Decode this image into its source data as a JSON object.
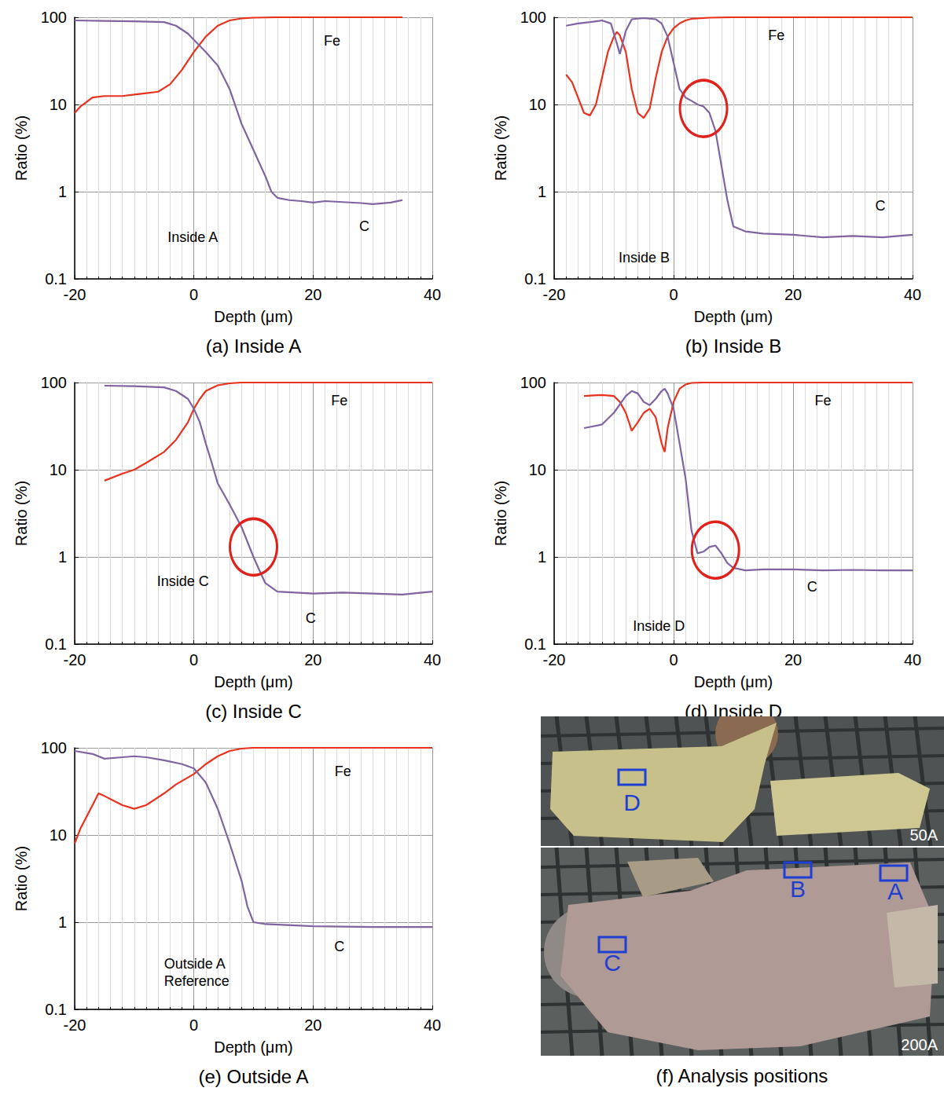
{
  "chart_data": [
    {
      "type": "line",
      "title": "(a) Inside A",
      "inset_label": "Inside A",
      "xlabel": "Depth (μm)",
      "ylabel": "Ratio (%)",
      "log": "y",
      "grid": true,
      "xlim": [
        -20,
        40
      ],
      "ylim": [
        0.1,
        100
      ],
      "xticks": [
        -20,
        0,
        20,
        40
      ],
      "yticks": [
        0.1,
        1,
        10,
        100
      ],
      "series": [
        {
          "name": "Fe",
          "color": "#e8321e",
          "x": [
            -20,
            -19,
            -17,
            -15,
            -12,
            -10,
            -8,
            -6,
            -4,
            -2,
            0,
            2,
            4,
            6,
            8,
            10,
            12,
            14,
            20,
            25,
            30,
            35
          ],
          "values": [
            8,
            9.5,
            12,
            12.5,
            12.5,
            13,
            13.5,
            14,
            17,
            25,
            40,
            60,
            80,
            92,
            97,
            99,
            99.5,
            100,
            100,
            100,
            100,
            100
          ]
        },
        {
          "name": "C",
          "color": "#8064a2",
          "x": [
            -20,
            -15,
            -10,
            -5,
            -3,
            -1,
            0,
            2,
            4,
            6,
            8,
            10,
            12,
            13,
            14,
            16,
            18,
            20,
            22,
            25,
            28,
            30,
            33,
            35
          ],
          "values": [
            92,
            91,
            90,
            88,
            80,
            65,
            55,
            40,
            28,
            15,
            6,
            3,
            1.5,
            1.0,
            0.85,
            0.8,
            0.78,
            0.75,
            0.78,
            0.76,
            0.74,
            0.72,
            0.75,
            0.8
          ]
        }
      ]
    },
    {
      "type": "line",
      "title": "(b) Inside B",
      "inset_label": "Inside B",
      "xlabel": "Depth (μm)",
      "ylabel": "Ratio (%)",
      "log": "y",
      "grid": true,
      "xlim": [
        -20,
        40
      ],
      "ylim": [
        0.1,
        100
      ],
      "xticks": [
        -20,
        0,
        20,
        40
      ],
      "yticks": [
        0.1,
        1,
        10,
        100
      ],
      "circled": [
        5,
        9
      ],
      "series": [
        {
          "name": "Fe",
          "color": "#e8321e",
          "x": [
            -18,
            -17,
            -16,
            -15,
            -14,
            -13,
            -12,
            -11,
            -10,
            -9.5,
            -9,
            -8,
            -7,
            -6,
            -5,
            -4,
            -3,
            -2,
            -1,
            0,
            1,
            2,
            3,
            6,
            10,
            20,
            30,
            40
          ],
          "values": [
            22,
            18,
            12,
            8,
            7.5,
            10,
            20,
            40,
            60,
            68,
            62,
            40,
            15,
            8,
            7,
            9,
            20,
            40,
            60,
            75,
            85,
            92,
            96,
            99,
            100,
            100,
            100,
            100
          ]
        },
        {
          "name": "C",
          "color": "#8064a2",
          "x": [
            -18,
            -16,
            -14,
            -12,
            -10.5,
            -9.5,
            -9,
            -8,
            -7,
            -5,
            -3,
            -2,
            -1,
            0,
            1,
            2,
            3,
            4,
            5,
            6,
            7,
            8,
            9,
            10,
            12,
            15,
            20,
            25,
            30,
            35,
            40
          ],
          "values": [
            80,
            85,
            88,
            92,
            85,
            50,
            38,
            70,
            95,
            98,
            95,
            85,
            60,
            30,
            15,
            12,
            11,
            10,
            9.5,
            8,
            5,
            2,
            0.8,
            0.4,
            0.35,
            0.33,
            0.32,
            0.3,
            0.31,
            0.3,
            0.32
          ]
        }
      ]
    },
    {
      "type": "line",
      "title": "(c) Inside C",
      "inset_label": "Inside C",
      "xlabel": "Depth (μm)",
      "ylabel": "Ratio (%)",
      "log": "y",
      "grid": true,
      "xlim": [
        -20,
        40
      ],
      "ylim": [
        0.1,
        100
      ],
      "xticks": [
        -20,
        0,
        20,
        40
      ],
      "yticks": [
        0.1,
        1,
        10,
        100
      ],
      "circled": [
        10,
        1.3
      ],
      "series": [
        {
          "name": "Fe",
          "color": "#e8321e",
          "x": [
            -15,
            -12,
            -10,
            -8,
            -5,
            -3,
            -1,
            0,
            1,
            2,
            4,
            6,
            8,
            10,
            20,
            30,
            40
          ],
          "values": [
            7.5,
            9,
            10,
            12,
            16,
            22,
            35,
            50,
            65,
            80,
            93,
            98,
            100,
            100,
            100,
            100,
            100
          ]
        },
        {
          "name": "C",
          "color": "#8064a2",
          "x": [
            -15,
            -10,
            -5,
            -3,
            -1,
            0,
            1,
            2,
            3,
            4,
            6,
            8,
            10,
            11,
            12,
            14,
            20,
            25,
            30,
            35,
            40
          ],
          "values": [
            92,
            91,
            88,
            80,
            65,
            50,
            35,
            20,
            12,
            7,
            4,
            2.2,
            1.0,
            0.7,
            0.5,
            0.4,
            0.38,
            0.39,
            0.38,
            0.37,
            0.4
          ]
        }
      ]
    },
    {
      "type": "line",
      "title": "(d) Inside D",
      "inset_label": "Inside D",
      "xlabel": "Depth (μm)",
      "ylabel": "Ratio (%)",
      "log": "y",
      "grid": true,
      "xlim": [
        -20,
        40
      ],
      "ylim": [
        0.1,
        100
      ],
      "xticks": [
        -20,
        0,
        20,
        40
      ],
      "yticks": [
        0.1,
        1,
        10,
        100
      ],
      "circled": [
        7,
        1.2
      ],
      "series": [
        {
          "name": "Fe",
          "color": "#e8321e",
          "x": [
            -15,
            -12,
            -10,
            -9,
            -8,
            -7,
            -6,
            -5,
            -4,
            -3,
            -2,
            -1.5,
            -1,
            0,
            1,
            2,
            3,
            5,
            10,
            20,
            30,
            40
          ],
          "values": [
            70,
            72,
            70,
            60,
            45,
            28,
            35,
            45,
            50,
            40,
            20,
            16,
            30,
            60,
            85,
            95,
            99,
            100,
            100,
            100,
            100,
            100
          ]
        },
        {
          "name": "C",
          "color": "#8064a2",
          "x": [
            -15,
            -12,
            -10,
            -8,
            -7,
            -6,
            -5,
            -4,
            -3,
            -2,
            -1.5,
            -1,
            0,
            1,
            2,
            3,
            4,
            5,
            6,
            7,
            8,
            9,
            10,
            12,
            15,
            20,
            25,
            30,
            35,
            40
          ],
          "values": [
            30,
            33,
            45,
            70,
            80,
            75,
            60,
            55,
            65,
            80,
            85,
            75,
            50,
            20,
            8,
            2,
            1.1,
            1.15,
            1.3,
            1.35,
            1.1,
            0.85,
            0.75,
            0.7,
            0.72,
            0.72,
            0.7,
            0.71,
            0.7,
            0.7
          ]
        }
      ]
    },
    {
      "type": "line",
      "title": "(e) Outside A",
      "inset_label": [
        "Outside A",
        "Reference"
      ],
      "xlabel": "Depth (μm)",
      "ylabel": "Ratio (%)",
      "log": "y",
      "grid": true,
      "xlim": [
        -20,
        40
      ],
      "ylim": [
        0.1,
        100
      ],
      "xticks": [
        -20,
        0,
        20,
        40
      ],
      "yticks": [
        0.1,
        1,
        10,
        100
      ],
      "series": [
        {
          "name": "Fe",
          "color": "#e8321e",
          "x": [
            -20,
            -19,
            -17,
            -16,
            -15,
            -12,
            -10,
            -8,
            -5,
            -3,
            0,
            2,
            4,
            6,
            8,
            10,
            20,
            30,
            40
          ],
          "values": [
            8,
            12,
            22,
            30,
            28,
            22,
            20,
            22,
            30,
            38,
            50,
            65,
            80,
            92,
            98,
            100,
            100,
            100,
            100
          ]
        },
        {
          "name": "C",
          "color": "#8064a2",
          "x": [
            -20,
            -17,
            -15,
            -12,
            -10,
            -8,
            -5,
            -2,
            0,
            2,
            4,
            6,
            8,
            9,
            10,
            12,
            20,
            30,
            40
          ],
          "values": [
            92,
            85,
            75,
            78,
            80,
            78,
            72,
            65,
            58,
            40,
            20,
            8,
            3,
            1.5,
            1.0,
            0.95,
            0.9,
            0.88,
            0.88
          ]
        }
      ]
    }
  ],
  "photo_panel": {
    "caption": "(f) Analysis positions",
    "photos": [
      {
        "label": "50A",
        "markers": [
          "D"
        ]
      },
      {
        "label": "200A",
        "markers": [
          "B",
          "A",
          "C"
        ]
      }
    ]
  }
}
